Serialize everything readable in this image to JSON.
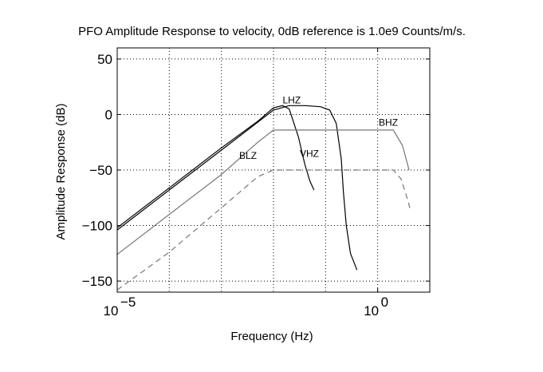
{
  "chart_data": {
    "type": "line",
    "title": "PFO Amplitude Response to velocity, 0dB reference is 1.0e9 Counts/m/s.",
    "xlabel": "Frequency (Hz)",
    "ylabel": "Amplitude Response (dB)",
    "x_scale": "log",
    "xlim": [
      1e-05,
      10
    ],
    "ylim": [
      -160,
      60
    ],
    "x_ticks": [
      {
        "value": 1e-05,
        "base": "10",
        "exp": "−5"
      },
      {
        "value": 1,
        "base": "10",
        "exp": "0"
      }
    ],
    "y_ticks": [
      {
        "value": 50,
        "label": "50"
      },
      {
        "value": 0,
        "label": "0"
      },
      {
        "value": -50,
        "label": "−50"
      },
      {
        "value": -100,
        "label": "−100"
      },
      {
        "value": -150,
        "label": "−150"
      }
    ],
    "x_grid": [
      0.0001,
      0.001,
      0.01,
      0.1,
      1
    ],
    "grid": "dotted",
    "series": [
      {
        "name": "LHZ",
        "color": "#000000",
        "dash": "",
        "x": [
          1e-05,
          0.0001,
          0.001,
          0.01,
          0.02,
          0.04,
          0.08,
          0.12,
          0.16,
          0.2,
          0.22,
          0.25,
          0.3,
          0.4
        ],
        "y": [
          -104,
          -68,
          -32,
          4,
          8,
          8,
          7,
          4,
          -8,
          -40,
          -70,
          -100,
          -125,
          -140
        ],
        "label": {
          "text": "LHZ",
          "x": 0.015,
          "y": 10
        }
      },
      {
        "name": "VHZ",
        "color": "#000000",
        "dash": "",
        "x": [
          1e-05,
          0.0001,
          0.001,
          0.005,
          0.01,
          0.015,
          0.02,
          0.03,
          0.04,
          0.05,
          0.06
        ],
        "y": [
          -102,
          -66,
          -30,
          -6,
          6,
          8,
          5,
          -20,
          -45,
          -60,
          -68
        ],
        "label": {
          "text": "VHZ",
          "x": 0.032,
          "y": -38
        }
      },
      {
        "name": "BHZ",
        "color": "#777777",
        "dash": "",
        "x": [
          1e-05,
          0.0001,
          0.001,
          0.005,
          0.01,
          0.1,
          1,
          2,
          3,
          4
        ],
        "y": [
          -126,
          -90,
          -54,
          -25,
          -14,
          -14,
          -14,
          -14,
          -28,
          -50
        ],
        "label": {
          "text": "BHZ",
          "x": 1.05,
          "y": -10
        }
      },
      {
        "name": "BLZ",
        "color": "#777777",
        "dash": "7,5",
        "x": [
          1e-05,
          0.0001,
          0.001,
          0.005,
          0.01,
          0.1,
          1,
          2,
          2.8,
          3.5,
          4.2
        ],
        "y": [
          -158,
          -124,
          -84,
          -56,
          -50,
          -50,
          -50,
          -50,
          -58,
          -72,
          -85
        ],
        "label": {
          "text": "BLZ",
          "x": 0.0022,
          "y": -40
        }
      }
    ]
  }
}
